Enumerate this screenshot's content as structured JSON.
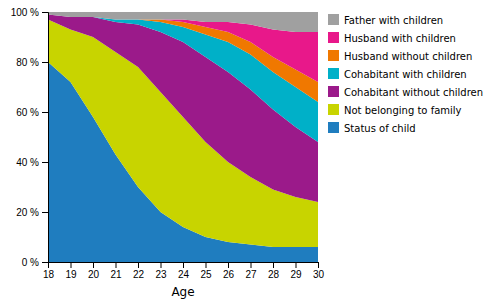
{
  "chart_data": {
    "type": "area",
    "stacked": true,
    "legend": "right",
    "grid": false,
    "xlabel": "Age",
    "x": [
      18,
      19,
      20,
      21,
      22,
      23,
      24,
      25,
      26,
      27,
      28,
      29,
      30
    ],
    "xlim": [
      18,
      30
    ],
    "xticks": [
      18,
      19,
      20,
      21,
      22,
      23,
      24,
      25,
      26,
      27,
      28,
      29,
      30
    ],
    "ylim": [
      0,
      100
    ],
    "yticks": [
      {
        "value": 0,
        "label": "0 %"
      },
      {
        "value": 20,
        "label": "20 %"
      },
      {
        "value": 40,
        "label": "40 %"
      },
      {
        "value": 60,
        "label": "60 %"
      },
      {
        "value": 80,
        "label": "80 %"
      },
      {
        "value": 100,
        "label": "100 %"
      }
    ],
    "series": [
      {
        "name": "Status of child",
        "color": "#1f7dbf",
        "values": [
          80,
          72,
          58,
          43,
          30,
          20,
          14,
          10,
          8,
          7,
          6,
          6,
          6
        ]
      },
      {
        "name": "Not belonging to family",
        "color": "#c8d400",
        "values": [
          17,
          21,
          32,
          41,
          48,
          48,
          44,
          38,
          32,
          27,
          23,
          20,
          18
        ]
      },
      {
        "name": "Cohabitant without children",
        "color": "#9b1a8a",
        "values": [
          2,
          5,
          8,
          12,
          17,
          24,
          30,
          34,
          36,
          35,
          32,
          28,
          24
        ]
      },
      {
        "name": "Cohabitant with children",
        "color": "#00b0c8",
        "values": [
          0,
          0,
          0,
          1,
          2,
          4,
          6,
          9,
          12,
          14,
          15,
          16,
          16
        ]
      },
      {
        "name": "Husband without children",
        "color": "#f07800",
        "values": [
          0,
          0,
          0,
          0,
          0,
          1,
          2,
          3,
          4,
          5,
          6,
          7,
          8
        ]
      },
      {
        "name": "Husband with children",
        "color": "#e8188a",
        "values": [
          0,
          0,
          0,
          0,
          0,
          0,
          1,
          2,
          4,
          7,
          11,
          15,
          20
        ]
      },
      {
        "name": "Father with children",
        "color": "#a0a0a0",
        "values": [
          1,
          2,
          2,
          3,
          3,
          3,
          3,
          4,
          4,
          5,
          7,
          8,
          8
        ]
      }
    ]
  }
}
